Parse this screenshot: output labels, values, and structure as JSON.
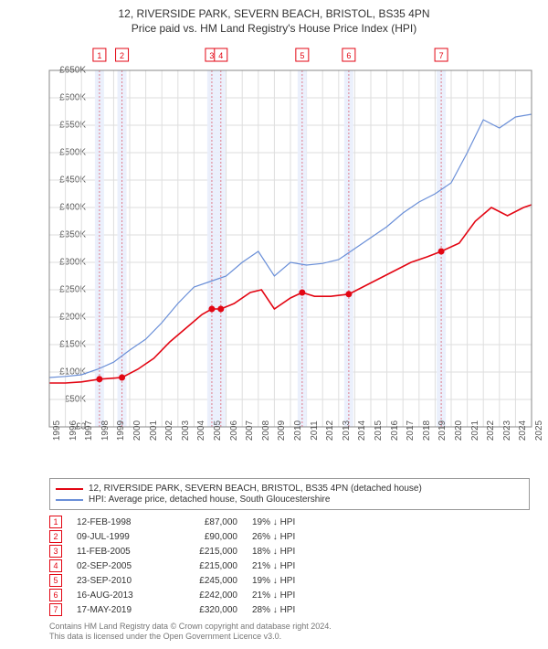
{
  "title_line1": "12, RIVERSIDE PARK, SEVERN BEACH, BRISTOL, BS35 4PN",
  "title_line2": "Price paid vs. HM Land Registry's House Price Index (HPI)",
  "chart": {
    "type": "line",
    "background_color": "#ffffff",
    "plot_bg": "#ffffff",
    "grid_color": "#dedede",
    "axis_color": "#888888",
    "ylim": [
      0,
      650000
    ],
    "ytick_step": 50000,
    "y_labels": [
      "£0",
      "£50K",
      "£100K",
      "£150K",
      "£200K",
      "£250K",
      "£300K",
      "£350K",
      "£400K",
      "£450K",
      "£500K",
      "£550K",
      "£600K",
      "£650K"
    ],
    "x_years": [
      1995,
      1996,
      1997,
      1998,
      1999,
      2000,
      2001,
      2002,
      2003,
      2004,
      2005,
      2006,
      2007,
      2008,
      2009,
      2010,
      2011,
      2012,
      2013,
      2014,
      2015,
      2016,
      2017,
      2018,
      2019,
      2020,
      2021,
      2022,
      2023,
      2024,
      2025
    ],
    "x_fontsize": 10,
    "y_fontsize": 10,
    "title_fontsize": 12,
    "marker_band_color": "#e9eefc",
    "marker_line_color": "#e07a8a",
    "badge_border_color": "#e30613",
    "badge_text_color": "#e30613",
    "series": {
      "property": {
        "label": "12, RIVERSIDE PARK, SEVERN BEACH, BRISTOL, BS35 4PN (detached house)",
        "color": "#e30613",
        "line_width": 1.6,
        "marker_color": "#e30613",
        "marker_radius": 3.5,
        "points": [
          {
            "year": 1995.0,
            "value": 80000
          },
          {
            "year": 1996.0,
            "value": 80000
          },
          {
            "year": 1997.0,
            "value": 82000
          },
          {
            "year": 1998.12,
            "value": 87000
          },
          {
            "year": 1999.52,
            "value": 90000
          },
          {
            "year": 2000.5,
            "value": 105000
          },
          {
            "year": 2001.5,
            "value": 125000
          },
          {
            "year": 2002.5,
            "value": 155000
          },
          {
            "year": 2003.5,
            "value": 180000
          },
          {
            "year": 2004.5,
            "value": 205000
          },
          {
            "year": 2005.11,
            "value": 215000
          },
          {
            "year": 2005.67,
            "value": 215000
          },
          {
            "year": 2006.5,
            "value": 225000
          },
          {
            "year": 2007.5,
            "value": 245000
          },
          {
            "year": 2008.2,
            "value": 250000
          },
          {
            "year": 2009.0,
            "value": 215000
          },
          {
            "year": 2010.0,
            "value": 235000
          },
          {
            "year": 2010.73,
            "value": 245000
          },
          {
            "year": 2011.5,
            "value": 238000
          },
          {
            "year": 2012.5,
            "value": 238000
          },
          {
            "year": 2013.63,
            "value": 242000
          },
          {
            "year": 2014.5,
            "value": 255000
          },
          {
            "year": 2015.5,
            "value": 270000
          },
          {
            "year": 2016.5,
            "value": 285000
          },
          {
            "year": 2017.5,
            "value": 300000
          },
          {
            "year": 2018.5,
            "value": 310000
          },
          {
            "year": 2019.38,
            "value": 320000
          },
          {
            "year": 2020.5,
            "value": 335000
          },
          {
            "year": 2021.5,
            "value": 375000
          },
          {
            "year": 2022.5,
            "value": 400000
          },
          {
            "year": 2023.5,
            "value": 385000
          },
          {
            "year": 2024.5,
            "value": 400000
          },
          {
            "year": 2025.0,
            "value": 405000
          }
        ]
      },
      "hpi": {
        "label": "HPI: Average price, detached house, South Gloucestershire",
        "color": "#6a8fd8",
        "line_width": 1.2,
        "points": [
          {
            "year": 1995.0,
            "value": 90000
          },
          {
            "year": 1996.0,
            "value": 92000
          },
          {
            "year": 1997.0,
            "value": 95000
          },
          {
            "year": 1998.0,
            "value": 105000
          },
          {
            "year": 1999.0,
            "value": 118000
          },
          {
            "year": 2000.0,
            "value": 140000
          },
          {
            "year": 2001.0,
            "value": 160000
          },
          {
            "year": 2002.0,
            "value": 190000
          },
          {
            "year": 2003.0,
            "value": 225000
          },
          {
            "year": 2004.0,
            "value": 255000
          },
          {
            "year": 2005.0,
            "value": 265000
          },
          {
            "year": 2006.0,
            "value": 275000
          },
          {
            "year": 2007.0,
            "value": 300000
          },
          {
            "year": 2008.0,
            "value": 320000
          },
          {
            "year": 2009.0,
            "value": 275000
          },
          {
            "year": 2010.0,
            "value": 300000
          },
          {
            "year": 2011.0,
            "value": 295000
          },
          {
            "year": 2012.0,
            "value": 298000
          },
          {
            "year": 2013.0,
            "value": 305000
          },
          {
            "year": 2014.0,
            "value": 325000
          },
          {
            "year": 2015.0,
            "value": 345000
          },
          {
            "year": 2016.0,
            "value": 365000
          },
          {
            "year": 2017.0,
            "value": 390000
          },
          {
            "year": 2018.0,
            "value": 410000
          },
          {
            "year": 2019.0,
            "value": 425000
          },
          {
            "year": 2020.0,
            "value": 445000
          },
          {
            "year": 2021.0,
            "value": 500000
          },
          {
            "year": 2022.0,
            "value": 560000
          },
          {
            "year": 2023.0,
            "value": 545000
          },
          {
            "year": 2024.0,
            "value": 565000
          },
          {
            "year": 2025.0,
            "value": 570000
          }
        ]
      }
    },
    "transactions": [
      {
        "n": 1,
        "year": 1998.12,
        "value": 87000,
        "date": "12-FEB-1998",
        "price": "£87,000",
        "diff": "19% ↓ HPI"
      },
      {
        "n": 2,
        "year": 1999.52,
        "value": 90000,
        "date": "09-JUL-1999",
        "price": "£90,000",
        "diff": "26% ↓ HPI"
      },
      {
        "n": 3,
        "year": 2005.11,
        "value": 215000,
        "date": "11-FEB-2005",
        "price": "£215,000",
        "diff": "18% ↓ HPI"
      },
      {
        "n": 4,
        "year": 2005.67,
        "value": 215000,
        "date": "02-SEP-2005",
        "price": "£215,000",
        "diff": "21% ↓ HPI"
      },
      {
        "n": 5,
        "year": 2010.73,
        "value": 245000,
        "date": "23-SEP-2010",
        "price": "£245,000",
        "diff": "19% ↓ HPI"
      },
      {
        "n": 6,
        "year": 2013.63,
        "value": 242000,
        "date": "16-AUG-2013",
        "price": "£242,000",
        "diff": "21% ↓ HPI"
      },
      {
        "n": 7,
        "year": 2019.38,
        "value": 320000,
        "date": "17-MAY-2019",
        "price": "£320,000",
        "diff": "28% ↓ HPI"
      }
    ]
  },
  "legend": {
    "series1": {
      "label_key": "chart.series.property.label",
      "color": "#e30613"
    },
    "series2": {
      "label_key": "chart.series.hpi.label",
      "color": "#6a8fd8"
    }
  },
  "footer_line1": "Contains HM Land Registry data © Crown copyright and database right 2024.",
  "footer_line2": "This data is licensed under the Open Government Licence v3.0."
}
